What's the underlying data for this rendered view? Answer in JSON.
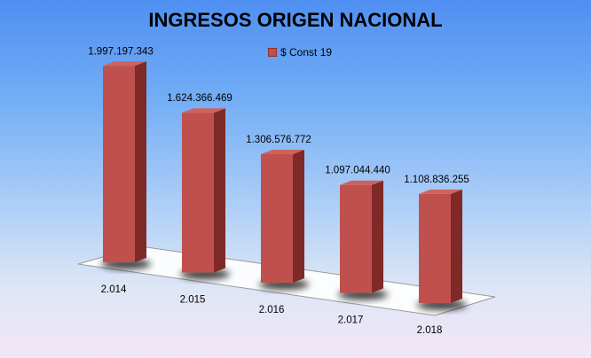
{
  "chart_data": {
    "type": "bar",
    "title": "INGRESOS ORIGEN NACIONAL",
    "categories": [
      "2.014",
      "2.015",
      "2.016",
      "2.017",
      "2.018"
    ],
    "series": [
      {
        "name": "$ Const 19",
        "values": [
          1997197343,
          1624366469,
          1306576772,
          1097044440,
          1108836255
        ],
        "labels": [
          "1.997.197.343",
          "1.624.366.469",
          "1.306.576.772",
          "1.097.044.440",
          "1.108.836.255"
        ]
      }
    ],
    "ylim": [
      0,
      2000000000
    ],
    "grid": false,
    "legend": "top"
  },
  "colors": {
    "bar_front": "#c0504d",
    "bar_side": "#7f2a27",
    "bar_top": "#d0625e",
    "floor": "#ffffff"
  }
}
